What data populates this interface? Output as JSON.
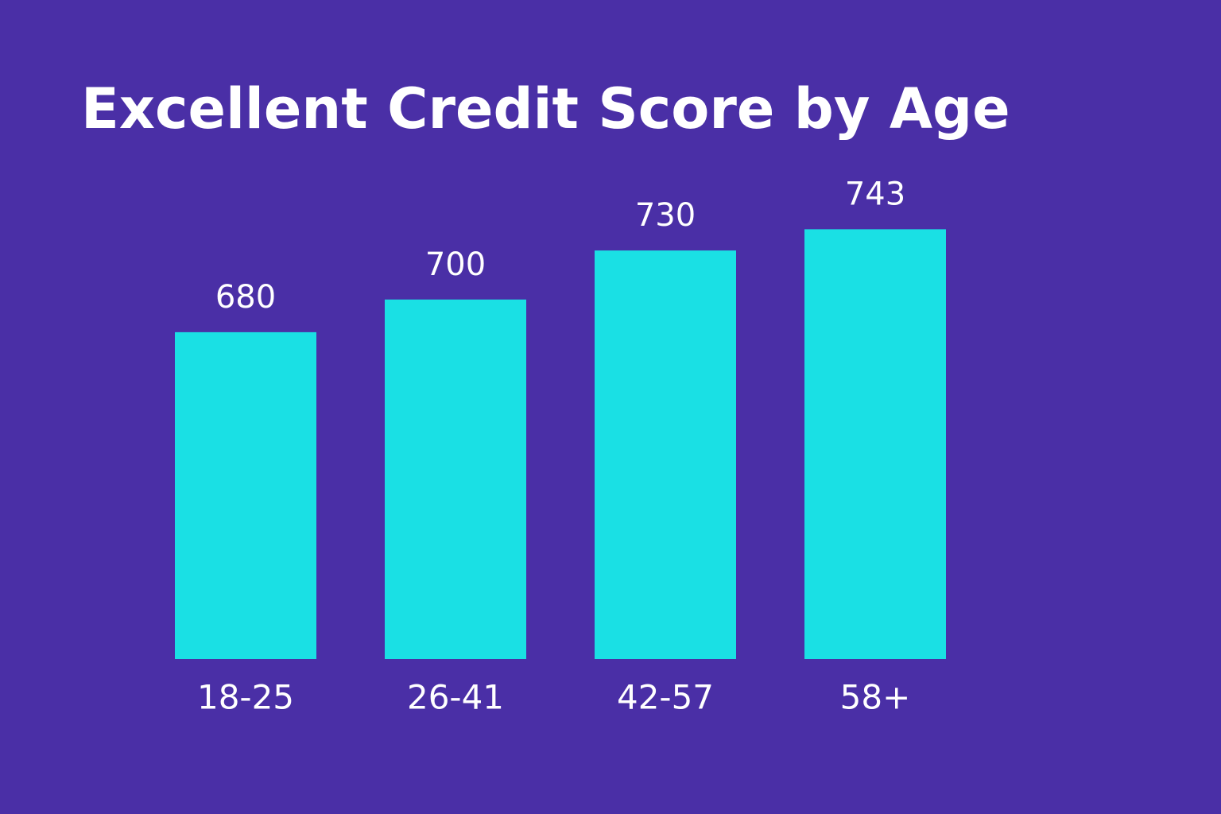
{
  "chart_data": {
    "type": "bar",
    "title": "Excellent Credit Score by Age",
    "categories": [
      "18-25",
      "26-41",
      "42-57",
      "58+"
    ],
    "values": [
      680,
      700,
      730,
      743
    ],
    "color": "#1ae0e4",
    "ylim": [
      480,
      750
    ]
  }
}
